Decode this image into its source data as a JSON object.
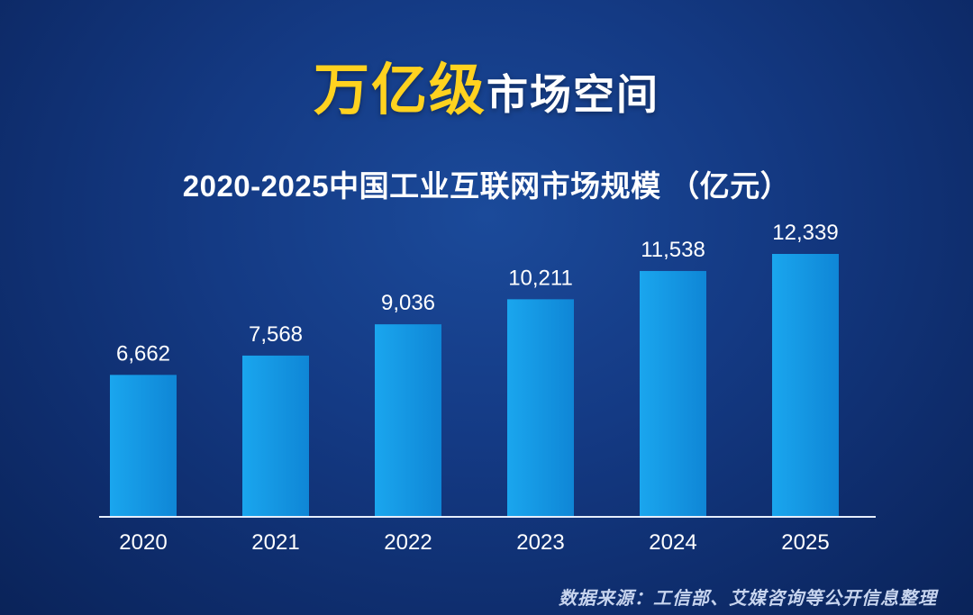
{
  "headline": {
    "highlight": "万亿级",
    "rest": "市场空间"
  },
  "source_note": "数据来源：工信部、艾媒咨询等公开信息整理",
  "colors": {
    "bar": "#1aa6ee",
    "bar_dark": "#0f86d6",
    "highlight": "#ffd21f",
    "axis": "#e6eefc"
  },
  "chart_data": {
    "type": "bar",
    "title": "2020-2025中国工业互联网市场规模 （亿元）",
    "categories": [
      "2020",
      "2021",
      "2022",
      "2023",
      "2024",
      "2025"
    ],
    "values": [
      6662,
      7568,
      9036,
      10211,
      11538,
      12339
    ],
    "value_labels": [
      "6,662",
      "7,568",
      "9,036",
      "10,211",
      "11,538",
      "12,339"
    ],
    "ylim": [
      0,
      12339
    ],
    "grid": false,
    "legend": "none"
  }
}
